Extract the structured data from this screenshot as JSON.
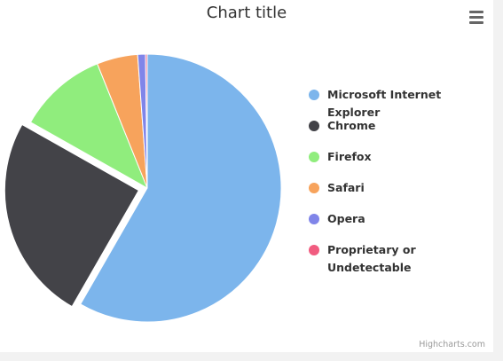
{
  "chart_data": {
    "type": "pie",
    "title": "Chart title",
    "slices": [
      {
        "name": "Microsoft Internet Explorer",
        "value": 56.33,
        "color": "#7cb5ec",
        "sliced": false
      },
      {
        "name": "Chrome",
        "value": 24.03,
        "color": "#434348",
        "sliced": true
      },
      {
        "name": "Firefox",
        "value": 10.38,
        "color": "#90ed7d",
        "sliced": false
      },
      {
        "name": "Safari",
        "value": 4.77,
        "color": "#f7a35c",
        "sliced": false
      },
      {
        "name": "Opera",
        "value": 0.91,
        "color": "#8085e9",
        "sliced": false
      },
      {
        "name": "Proprietary or Undetectable",
        "value": 0.2,
        "color": "#f15c80",
        "sliced": false
      }
    ],
    "legend_position": "right"
  },
  "menu": {
    "icon": "hamburger-menu-icon"
  },
  "credits": "Highcharts.com"
}
